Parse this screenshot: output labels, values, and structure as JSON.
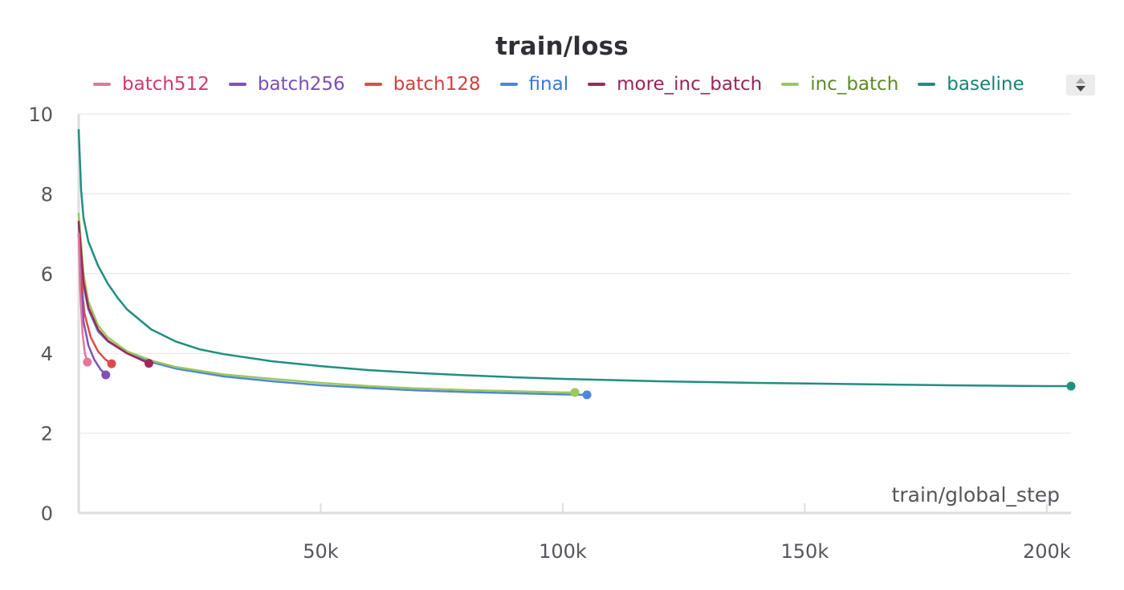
{
  "chart_data": {
    "type": "line",
    "title": "train/loss",
    "xlabel": "train/global_step",
    "ylabel": "",
    "xlim": [
      0,
      205000
    ],
    "ylim": [
      0,
      10
    ],
    "x_ticks": [
      50000,
      100000,
      150000,
      200000
    ],
    "x_tick_labels": [
      "50k",
      "100k",
      "150k",
      "200k"
    ],
    "y_ticks": [
      0,
      2,
      4,
      6,
      8,
      10
    ],
    "y_tick_labels": [
      "0",
      "2",
      "4",
      "6",
      "8",
      "10"
    ],
    "grid": true,
    "legend_position": "top",
    "series": [
      {
        "name": "batch512",
        "color": "#e2779b",
        "text_color": "#d03a6e",
        "x": [
          0,
          300,
          800,
          1300,
          1800
        ],
        "y": [
          7.0,
          5.6,
          4.5,
          4.0,
          3.78
        ]
      },
      {
        "name": "batch256",
        "color": "#7f52b8",
        "text_color": "#7a4fb5",
        "x": [
          0,
          400,
          1000,
          2000,
          3200,
          4500,
          5600
        ],
        "y": [
          7.0,
          5.8,
          4.8,
          4.2,
          3.85,
          3.6,
          3.46
        ]
      },
      {
        "name": "batch128",
        "color": "#dc4b4b",
        "text_color": "#d23f3f",
        "x": [
          0,
          500,
          1200,
          2500,
          4000,
          5500,
          6800
        ],
        "y": [
          7.0,
          5.9,
          5.0,
          4.4,
          4.05,
          3.85,
          3.74
        ]
      },
      {
        "name": "final",
        "color": "#4f86db",
        "text_color": "#3a78d6",
        "x": [
          0,
          1000,
          2000,
          4000,
          6000,
          10000,
          15000,
          20000,
          30000,
          40000,
          50000,
          60000,
          70000,
          80000,
          90000,
          100000,
          105000
        ],
        "y": [
          7.2,
          5.7,
          5.1,
          4.55,
          4.3,
          4.0,
          3.78,
          3.62,
          3.42,
          3.3,
          3.2,
          3.13,
          3.07,
          3.03,
          3.0,
          2.97,
          2.96
        ]
      },
      {
        "name": "more_inc_batch",
        "color": "#a0265a",
        "text_color": "#9a2358",
        "x": [
          0,
          1000,
          2000,
          4000,
          6000,
          10000,
          14500
        ],
        "y": [
          7.3,
          5.8,
          5.15,
          4.6,
          4.32,
          4.0,
          3.75
        ]
      },
      {
        "name": "inc_batch",
        "color": "#9bc95a",
        "text_color": "#5d8a26",
        "x": [
          0,
          1000,
          2000,
          4000,
          6000,
          10000,
          15000,
          20000,
          30000,
          40000,
          50000,
          60000,
          70000,
          80000,
          90000,
          100000,
          102500
        ],
        "y": [
          7.5,
          6.0,
          5.3,
          4.7,
          4.4,
          4.05,
          3.82,
          3.66,
          3.47,
          3.36,
          3.26,
          3.18,
          3.12,
          3.08,
          3.05,
          3.02,
          3.02
        ]
      },
      {
        "name": "baseline",
        "color": "#1f8f7f",
        "text_color": "#178374",
        "x": [
          0,
          500,
          1000,
          2000,
          4000,
          6000,
          8000,
          10000,
          15000,
          20000,
          25000,
          30000,
          40000,
          50000,
          60000,
          70000,
          80000,
          90000,
          100000,
          120000,
          140000,
          160000,
          180000,
          200000,
          205000
        ],
        "y": [
          9.6,
          8.1,
          7.4,
          6.8,
          6.2,
          5.75,
          5.4,
          5.1,
          4.6,
          4.3,
          4.1,
          3.98,
          3.8,
          3.68,
          3.58,
          3.51,
          3.45,
          3.4,
          3.36,
          3.3,
          3.26,
          3.23,
          3.2,
          3.18,
          3.18
        ]
      }
    ]
  }
}
